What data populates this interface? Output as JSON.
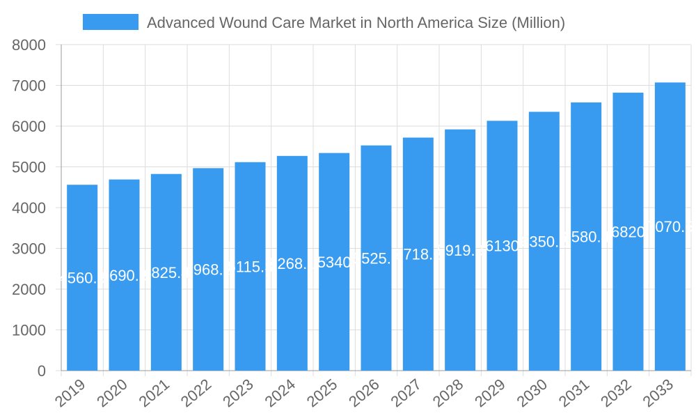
{
  "chart_data": {
    "type": "bar",
    "categories": [
      "2019",
      "2020",
      "2021",
      "2022",
      "2023",
      "2024",
      "2025",
      "2026",
      "2027",
      "2028",
      "2029",
      "2030",
      "2031",
      "2032",
      "2033"
    ],
    "series": [
      {
        "name": "Advanced Wound Care Market in North America Size (Million)",
        "values": [
          4560.5,
          4690.3,
          4825.4,
          4968.2,
          5115.3,
          5268.1,
          5340,
          5525.7,
          5718.2,
          5919.3,
          6130,
          6350.2,
          6580.4,
          6820,
          7070.5
        ]
      }
    ],
    "ylim": [
      0,
      8000
    ],
    "yticks": [
      0,
      1000,
      2000,
      3000,
      4000,
      5000,
      6000,
      7000,
      8000
    ],
    "grid": true,
    "legend": "top",
    "colors": {
      "bar": "#399BF0",
      "grid": "#DDDDDD",
      "text": "#666666",
      "label": "#FFFFFF"
    }
  }
}
